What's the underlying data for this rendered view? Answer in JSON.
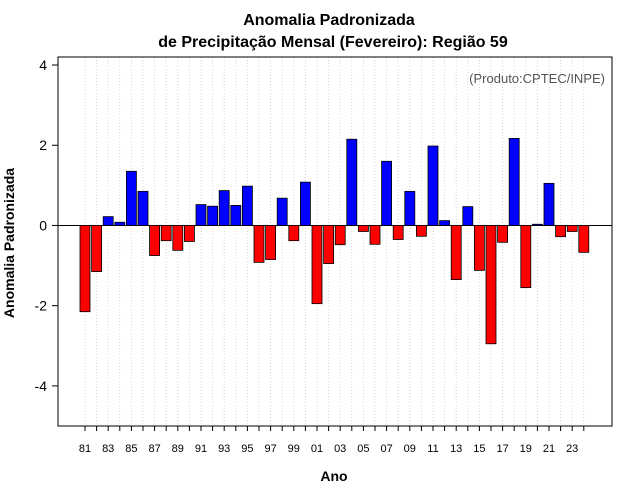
{
  "chart_data": {
    "type": "bar",
    "title_line1": "Anomalia Padronizada",
    "title_line2": "de Precipitação Mensal (Fevereiro): Região 59",
    "credit": "(Produto:CPTEC/INPE)",
    "xlabel": "Ano",
    "ylabel": "Anomalia Padronizada",
    "ylim": [
      -5,
      4.2
    ],
    "yticks": [
      -4,
      -2,
      0,
      2,
      4
    ],
    "yticklabels": [
      "-4",
      "-2",
      "0",
      "2",
      "4"
    ],
    "categories": [
      "81",
      "82",
      "83",
      "84",
      "85",
      "86",
      "87",
      "88",
      "89",
      "90",
      "91",
      "92",
      "93",
      "94",
      "95",
      "96",
      "97",
      "98",
      "99",
      "00",
      "01",
      "02",
      "03",
      "04",
      "05",
      "06",
      "07",
      "08",
      "09",
      "10",
      "11",
      "12",
      "13",
      "14",
      "15",
      "16",
      "17",
      "18",
      "19",
      "20",
      "21",
      "22",
      "23",
      "24"
    ],
    "xticklabels": [
      "81",
      "83",
      "85",
      "87",
      "89",
      "91",
      "93",
      "95",
      "97",
      "99",
      "01",
      "03",
      "05",
      "07",
      "09",
      "11",
      "13",
      "15",
      "17",
      "19",
      "21",
      "23"
    ],
    "values": [
      -2.15,
      -1.15,
      0.22,
      0.08,
      1.35,
      0.85,
      -0.75,
      -0.38,
      -0.62,
      -0.4,
      0.52,
      0.48,
      0.87,
      0.5,
      0.98,
      -0.92,
      -0.85,
      0.68,
      -0.38,
      1.08,
      -1.95,
      -0.95,
      -0.48,
      2.15,
      -0.15,
      -0.47,
      1.6,
      -0.35,
      0.85,
      -0.27,
      1.98,
      0.12,
      -1.35,
      0.47,
      -1.12,
      -2.95,
      -0.42,
      2.17,
      -1.55,
      0.03,
      1.05,
      -0.28,
      -0.15,
      -0.67
    ],
    "positive_color": "#0000ff",
    "negative_color": "#ff0000",
    "grid": "vertical-dotted"
  }
}
